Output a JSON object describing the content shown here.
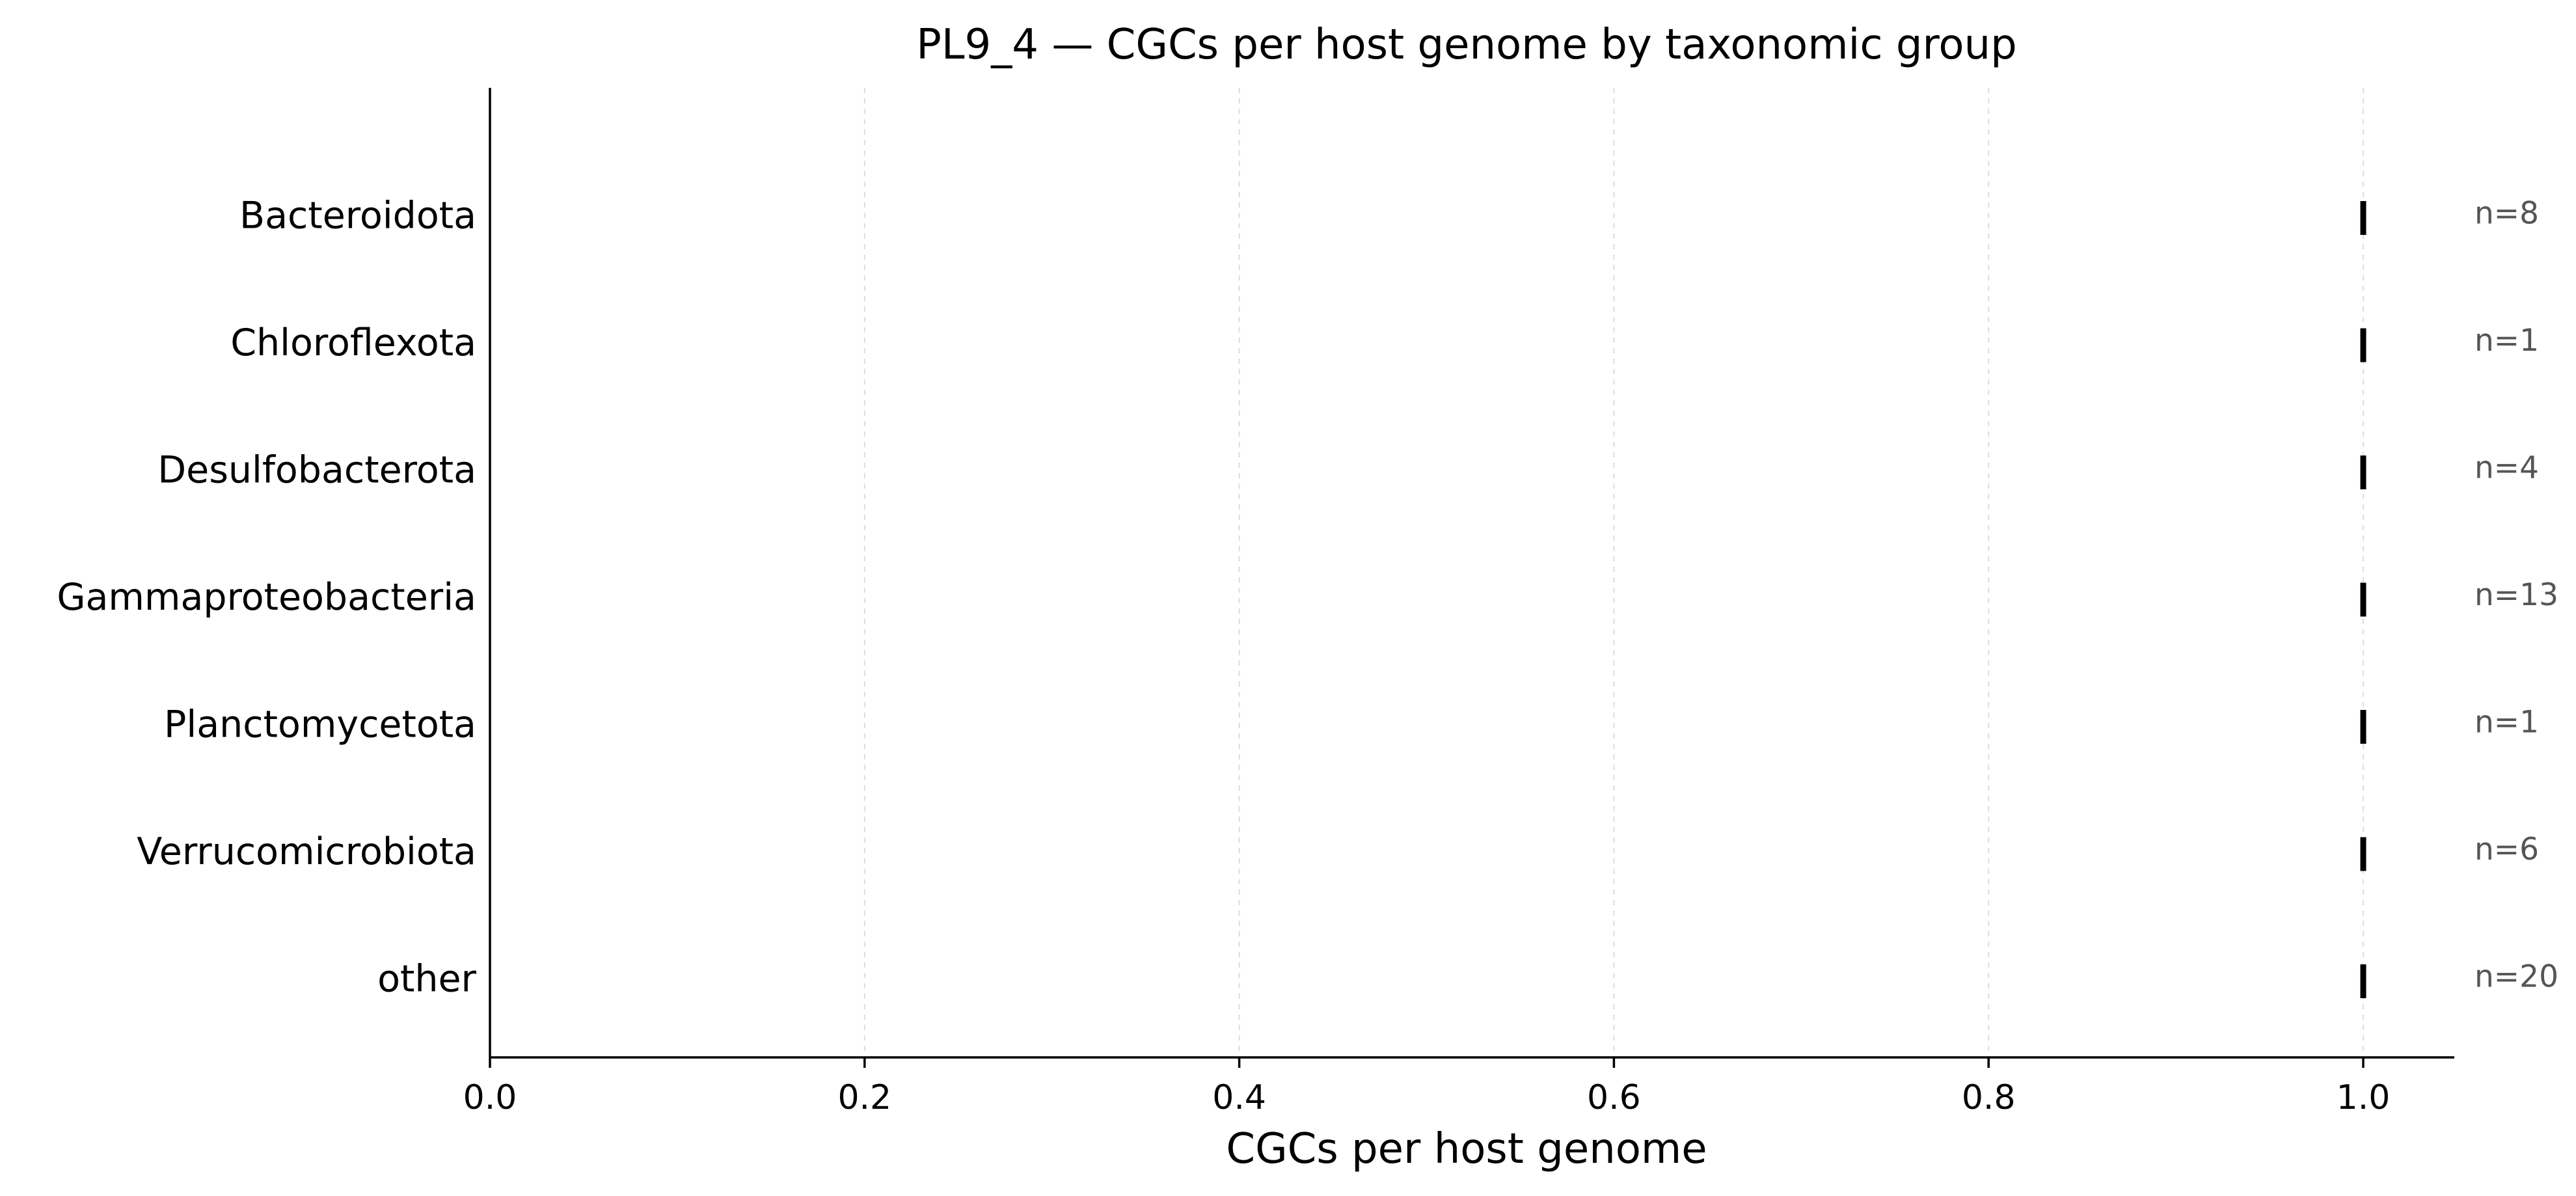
{
  "chart_data": {
    "type": "strip",
    "title": "PL9_4 — CGCs per host genome by taxonomic group",
    "xlabel": "CGCs per host genome",
    "ylabel": "",
    "xlim": [
      0,
      1.05
    ],
    "x_ticks": [
      0.0,
      0.2,
      0.4,
      0.6,
      0.8,
      1.0
    ],
    "x_tick_labels": [
      "0.0",
      "0.2",
      "0.4",
      "0.6",
      "0.8",
      "1.0"
    ],
    "grid": "vertical dashed",
    "categories": [
      "Bacteroidota",
      "Chloroflexota",
      "Desulfobacterota",
      "Gammaproteobacteria",
      "Planctomycetota",
      "Verrucomicrobiota",
      "other"
    ],
    "values": [
      1.0,
      1.0,
      1.0,
      1.0,
      1.0,
      1.0,
      1.0
    ],
    "n_labels": [
      "n=8",
      "n=1",
      "n=4",
      "n=13",
      "n=1",
      "n=6",
      "n=20"
    ],
    "n": [
      8,
      1,
      4,
      13,
      1,
      6,
      20
    ],
    "mark_color": "#000000",
    "n_label_color": "#555555"
  }
}
